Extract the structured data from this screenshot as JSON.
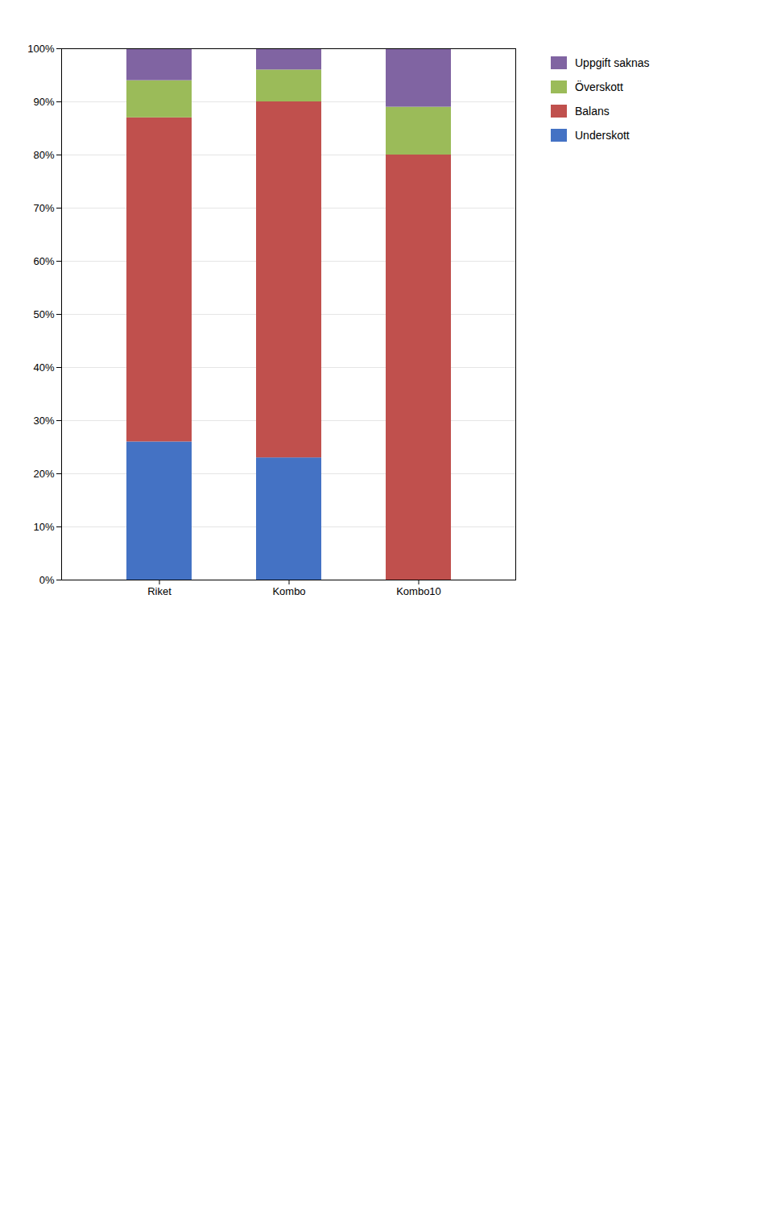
{
  "chart_data": {
    "type": "bar",
    "stacked": true,
    "categories": [
      "Riket",
      "Kombo",
      "Kombo10"
    ],
    "series": [
      {
        "name": "Underskott",
        "color": "#4472C4",
        "values": [
          26,
          23,
          0
        ]
      },
      {
        "name": "Balans",
        "color": "#C0504D",
        "values": [
          61,
          67,
          80
        ]
      },
      {
        "name": "Överskott",
        "color": "#9BBB59",
        "values": [
          7,
          6,
          9
        ]
      },
      {
        "name": "Uppgift saknas",
        "color": "#8064A2",
        "values": [
          6,
          4,
          11
        ]
      }
    ],
    "ylim": [
      0,
      100
    ],
    "yticks": [
      {
        "value": 0,
        "label": "0%"
      },
      {
        "value": 10,
        "label": "10%"
      },
      {
        "value": 20,
        "label": "20%"
      },
      {
        "value": 30,
        "label": "30%"
      },
      {
        "value": 40,
        "label": "40%"
      },
      {
        "value": 50,
        "label": "50%"
      },
      {
        "value": 60,
        "label": "60%"
      },
      {
        "value": 70,
        "label": "70%"
      },
      {
        "value": 80,
        "label": "80%"
      },
      {
        "value": 90,
        "label": "90%"
      },
      {
        "value": 100,
        "label": "100%"
      }
    ],
    "grid": true,
    "legend": "right"
  }
}
